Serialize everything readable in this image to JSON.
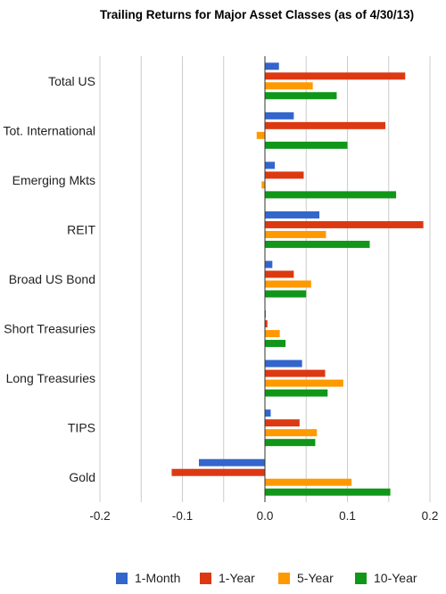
{
  "chart_data": {
    "type": "bar",
    "orientation": "horizontal",
    "title": "Trailing Returns for Major Asset Classes (as of 4/30/13)",
    "categories": [
      "Total US",
      "Tot. International",
      "Emerging Mkts",
      "REIT",
      "Broad US Bond",
      "Short Treasuries",
      "Long Treasuries",
      "TIPS",
      "Gold"
    ],
    "series": [
      {
        "name": "1-Month",
        "color": "#3366cc",
        "values": [
          0.017,
          0.035,
          0.012,
          0.066,
          0.009,
          0.001,
          0.045,
          0.007,
          -0.08
        ]
      },
      {
        "name": "1-Year",
        "color": "#dc3912",
        "values": [
          0.17,
          0.146,
          0.047,
          0.192,
          0.035,
          0.003,
          0.073,
          0.042,
          -0.113
        ]
      },
      {
        "name": "5-Year",
        "color": "#ff9900",
        "values": [
          0.058,
          -0.01,
          -0.004,
          0.074,
          0.056,
          0.018,
          0.095,
          0.063,
          0.105
        ]
      },
      {
        "name": "10-Year",
        "color": "#109618",
        "values": [
          0.087,
          0.1,
          0.159,
          0.127,
          0.05,
          0.025,
          0.076,
          0.061,
          0.152
        ]
      }
    ],
    "xlim": [
      -0.2,
      0.2
    ],
    "xticks": [
      -0.2,
      -0.1,
      0.0,
      0.1,
      0.2
    ],
    "xtick_labels": [
      "-0.2",
      "-0.1",
      "0.0",
      "0.1",
      "0.2"
    ],
    "xlabel": "",
    "ylabel": "",
    "grid": true,
    "legend_position": "bottom"
  }
}
